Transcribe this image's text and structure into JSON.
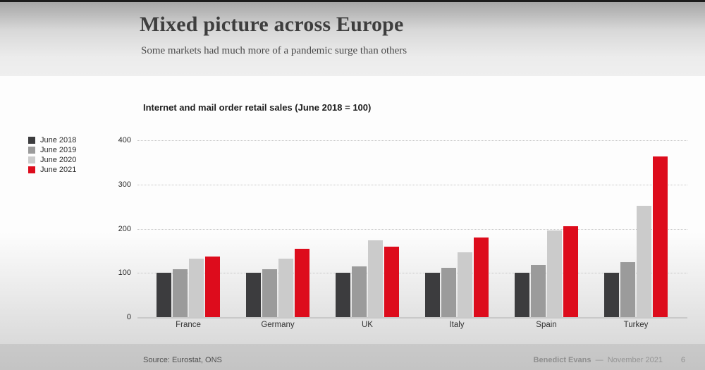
{
  "slide": {
    "title": "Mixed picture across Europe",
    "subtitle": "Some markets had much more of a pandemic surge than others",
    "footer": {
      "source": "Source: Eurostat, ONS",
      "author": "Benedict Evans",
      "separator": "—",
      "date": "November 2021",
      "page_number": "6"
    }
  },
  "chart_data": {
    "type": "bar",
    "title": "Internet and mail order retail sales (June 2018 = 100)",
    "categories": [
      "France",
      "Germany",
      "UK",
      "Italy",
      "Spain",
      "Turkey"
    ],
    "series": [
      {
        "name": "June 2018",
        "color": "#3c3c3e",
        "values": [
          100,
          100,
          100,
          100,
          100,
          101
        ]
      },
      {
        "name": "June 2019",
        "color": "#9b9b9b",
        "values": [
          109,
          108,
          114,
          112,
          118,
          125
        ]
      },
      {
        "name": "June 2020",
        "color": "#cbcbcb",
        "values": [
          132,
          132,
          174,
          146,
          196,
          252
        ]
      },
      {
        "name": "June 2021",
        "color": "#dd0c1c",
        "values": [
          137,
          154,
          160,
          180,
          206,
          363
        ]
      }
    ],
    "xlabel": "",
    "ylabel": "",
    "ylim": [
      0,
      400
    ],
    "yticks": [
      0,
      100,
      200,
      300,
      400
    ],
    "grid": "horizontal-dotted",
    "legend_position": "left",
    "colors": {
      "grid": "#c5c5c5",
      "baseline": "#c9c9c9",
      "accent_red": "#dd0c1c"
    }
  }
}
